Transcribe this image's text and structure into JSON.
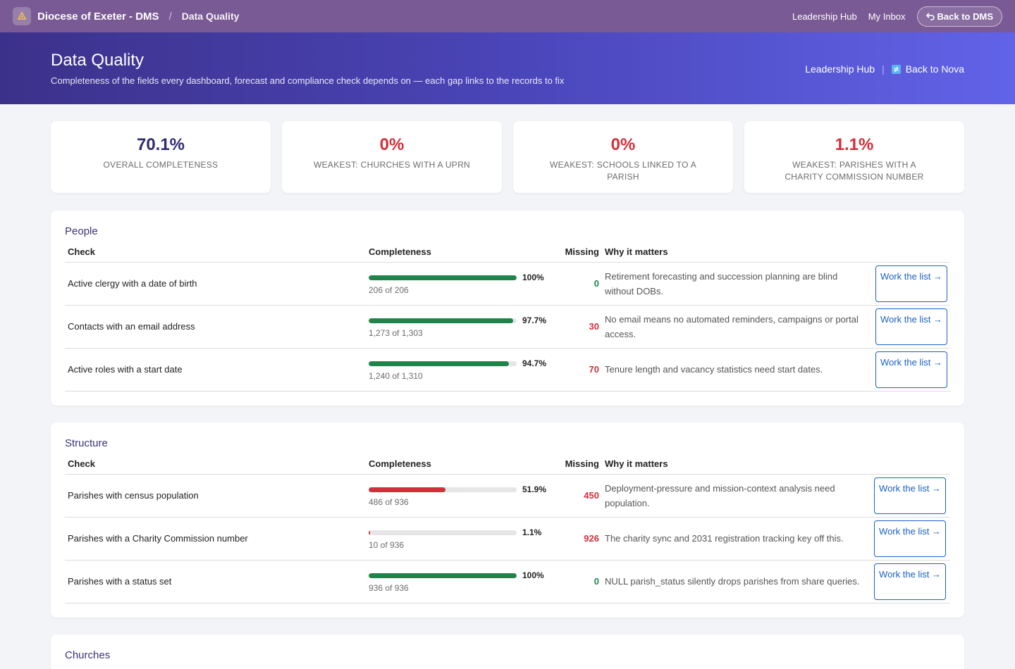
{
  "topnav": {
    "brand": "Diocese of Exeter - DMS",
    "separator": "/",
    "current": "Data Quality",
    "links": [
      "Leadership Hub",
      "My Inbox"
    ],
    "back_button": "Back to DMS"
  },
  "hero": {
    "title": "Data Quality",
    "subtitle": "Completeness of the fields every dashboard, forecast and compliance check depends on — each gap links to the records to fix",
    "link_hub": "Leadership Hub",
    "separator": "|",
    "link_nova": "Back to Nova"
  },
  "kpis": [
    {
      "value": "70.1%",
      "label": "Overall completeness",
      "color": "#2f2a72"
    },
    {
      "value": "0%",
      "label": "Weakest: Churches with a UPRN",
      "color": "#d32f3a"
    },
    {
      "value": "0%",
      "label": "Weakest: Schools linked to a parish",
      "color": "#d32f3a"
    },
    {
      "value": "1.1%",
      "label": "Weakest: Parishes with a Charity Commission number",
      "color": "#d32f3a"
    }
  ],
  "table_headers": {
    "check": "Check",
    "completeness": "Completeness",
    "missing": "Missing",
    "why": "Why it matters"
  },
  "sections": [
    {
      "title": "People",
      "rows": [
        {
          "check": "Active clergy with a date of birth",
          "pct": "100%",
          "fraction": 1.0,
          "count": "206 of 206",
          "missing": "0",
          "why": "Retirement forecasting and succession planning are blind without DOBs.",
          "action": "Work the list →"
        },
        {
          "check": "Contacts with an email address",
          "pct": "97.7%",
          "fraction": 0.977,
          "count": "1,273 of 1,303",
          "missing": "30",
          "why": "No email means no automated reminders, campaigns or portal access.",
          "action": "Work the list →"
        },
        {
          "check": "Active roles with a start date",
          "pct": "94.7%",
          "fraction": 0.947,
          "count": "1,240 of 1,310",
          "missing": "70",
          "why": "Tenure length and vacancy statistics need start dates.",
          "action": "Work the list →"
        }
      ]
    },
    {
      "title": "Structure",
      "rows": [
        {
          "check": "Parishes with census population",
          "pct": "51.9%",
          "fraction": 0.519,
          "count": "486 of 936",
          "missing": "450",
          "why": "Deployment-pressure and mission-context analysis need population.",
          "action": "Work the list →"
        },
        {
          "check": "Parishes with a Charity Commission number",
          "pct": "1.1%",
          "fraction": 0.011,
          "count": "10 of 936",
          "missing": "926",
          "why": "The charity sync and 2031 registration tracking key off this.",
          "action": "Work the list →"
        },
        {
          "check": "Parishes with a status set",
          "pct": "100%",
          "fraction": 1.0,
          "count": "936 of 936",
          "missing": "0",
          "why": "NULL parish_status silently drops parishes from share queries.",
          "action": "Work the list →"
        }
      ]
    },
    {
      "title": "Churches",
      "rows": []
    }
  ],
  "colors": {
    "good": "#1e8449",
    "bad": "#d32f3a",
    "accent": "#1a62c4"
  }
}
